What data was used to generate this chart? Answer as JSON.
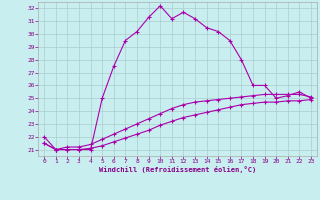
{
  "xlabel": "Windchill (Refroidissement éolien,°C)",
  "bg_color": "#c8eef0",
  "line_color": "#aa00aa",
  "grid_color": "#aacccc",
  "xlim": [
    -0.5,
    23.5
  ],
  "ylim": [
    20.5,
    32.5
  ],
  "xticks": [
    0,
    1,
    2,
    3,
    4,
    5,
    6,
    7,
    8,
    9,
    10,
    11,
    12,
    13,
    14,
    15,
    16,
    17,
    18,
    19,
    20,
    21,
    22,
    23
  ],
  "yticks": [
    21,
    22,
    23,
    24,
    25,
    26,
    27,
    28,
    29,
    30,
    31,
    32
  ],
  "line1_x": [
    0,
    1,
    2,
    3,
    4,
    5,
    6,
    7,
    8,
    9,
    10,
    11,
    12,
    13,
    14,
    15,
    16,
    17,
    18,
    19,
    20,
    21,
    22,
    23
  ],
  "line1_y": [
    22.0,
    21.0,
    21.0,
    21.0,
    21.0,
    25.0,
    27.5,
    29.5,
    30.2,
    31.3,
    32.2,
    31.2,
    31.7,
    31.2,
    30.5,
    30.2,
    29.5,
    28.0,
    26.0,
    26.0,
    25.0,
    25.2,
    25.5,
    25.0
  ],
  "line2_x": [
    0,
    1,
    2,
    3,
    4,
    5,
    6,
    7,
    8,
    9,
    10,
    11,
    12,
    13,
    14,
    15,
    16,
    17,
    18,
    19,
    20,
    21,
    22,
    23
  ],
  "line2_y": [
    21.5,
    21.0,
    21.2,
    21.2,
    21.4,
    21.8,
    22.2,
    22.6,
    23.0,
    23.4,
    23.8,
    24.2,
    24.5,
    24.7,
    24.8,
    24.9,
    25.0,
    25.1,
    25.2,
    25.3,
    25.3,
    25.3,
    25.3,
    25.1
  ],
  "line3_x": [
    0,
    1,
    2,
    3,
    4,
    5,
    6,
    7,
    8,
    9,
    10,
    11,
    12,
    13,
    14,
    15,
    16,
    17,
    18,
    19,
    20,
    21,
    22,
    23
  ],
  "line3_y": [
    21.5,
    21.0,
    21.0,
    21.0,
    21.1,
    21.3,
    21.6,
    21.9,
    22.2,
    22.5,
    22.9,
    23.2,
    23.5,
    23.7,
    23.9,
    24.1,
    24.3,
    24.5,
    24.6,
    24.7,
    24.7,
    24.8,
    24.8,
    24.9
  ]
}
